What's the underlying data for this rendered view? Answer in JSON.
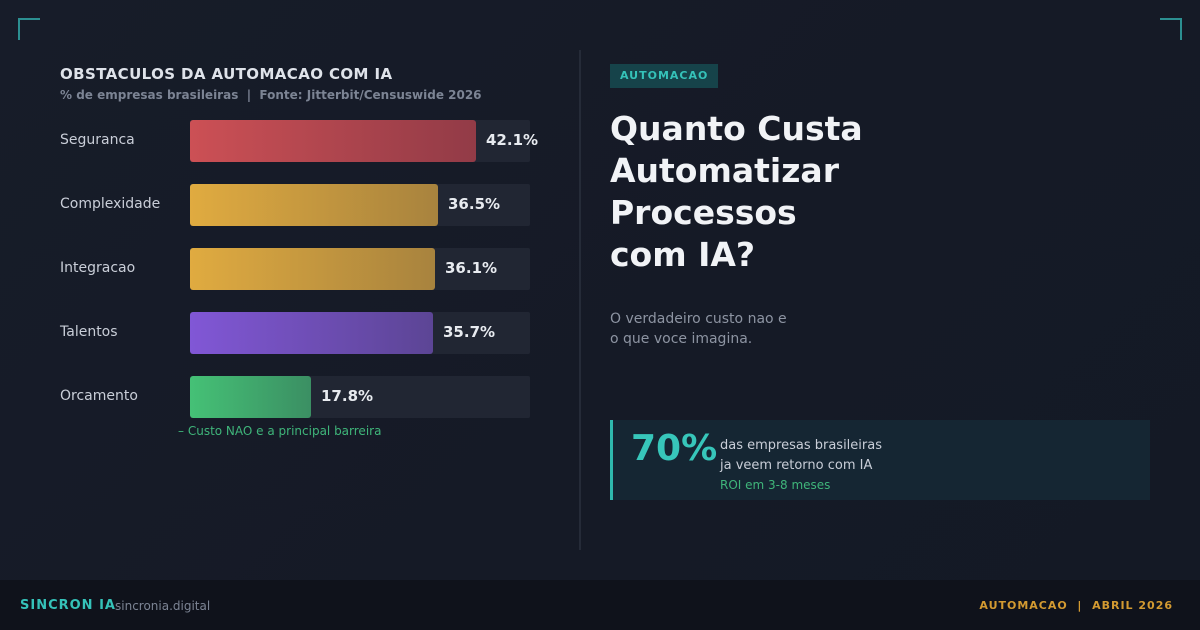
{
  "chart_data": {
    "type": "bar",
    "orientation": "horizontal",
    "title": "OBSTACULOS DA AUTOMACAO COM IA",
    "subtitle": "% de empresas brasileiras  |  Fonte: Jitterbit/Censuswide 2026",
    "categories": [
      "Seguranca",
      "Complexidade",
      "Integracao",
      "Talentos",
      "Orcamento"
    ],
    "values": [
      42.1,
      36.5,
      36.1,
      35.7,
      17.8
    ],
    "value_labels": [
      "42.1%",
      "36.5%",
      "36.1%",
      "35.7%",
      "17.8%"
    ],
    "colors": [
      [
        "#cc5055",
        "#923b47"
      ],
      [
        "#e0ab40",
        "#a8833e"
      ],
      [
        "#e0ab40",
        "#a8833e"
      ],
      [
        "#8157d6",
        "#5c4595"
      ],
      [
        "#45c176",
        "#3b8f63"
      ]
    ],
    "xlim": [
      0,
      50
    ],
    "grid": false,
    "annotation": "Custo NAO e a principal barreira"
  },
  "right": {
    "tag": "AUTOMACAO",
    "headline": [
      "Quanto Custa",
      "Automatizar",
      "Processos",
      "com IA?"
    ],
    "lead": [
      "O verdadeiro custo nao e",
      "o que voce imagina."
    ],
    "stat": {
      "number": "70%",
      "line1": "das empresas brasileiras",
      "line2": "ja veem retorno com IA",
      "line3": "ROI em 3-8 meses"
    }
  },
  "footer": {
    "brand": "SINCRON IA",
    "site": "sincronia.digital",
    "right": "AUTOMACAO  |  ABRIL 2026"
  },
  "colors": {
    "accent": "#35c2b9",
    "gold": "#d39a31",
    "green": "#3fb57a"
  }
}
